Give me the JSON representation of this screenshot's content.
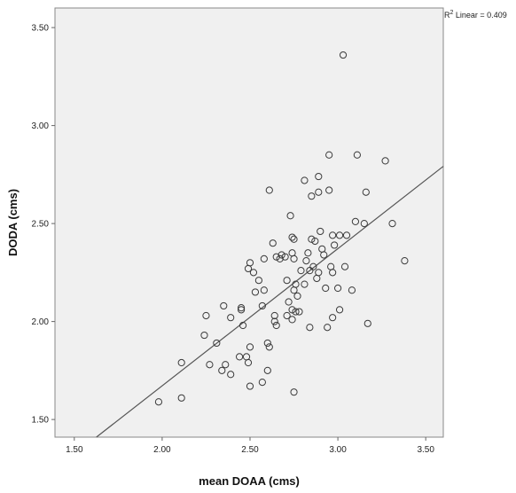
{
  "chart_data": {
    "type": "scatter",
    "title": "",
    "xlabel": "mean DOAA (cms)",
    "ylabel": "DODA (cms)",
    "xlim": [
      1.39,
      3.6
    ],
    "ylim": [
      1.41,
      3.6
    ],
    "x_ticks": [
      "1.50",
      "2.00",
      "2.50",
      "3.00",
      "3.50"
    ],
    "y_ticks": [
      "1.50",
      "2.00",
      "2.50",
      "3.00",
      "3.50"
    ],
    "grid": false,
    "background": "#f0f0f0",
    "marker_color": "#3a3a3a",
    "fit_line_color": "#555555",
    "fit_line": {
      "label_prefix": "R",
      "label_sup": "2",
      "label_suffix": " Linear = 0.409",
      "intercept": 0.272,
      "slope": 0.7
    },
    "points": [
      [
        1.98,
        1.59
      ],
      [
        2.11,
        1.61
      ],
      [
        2.11,
        1.79
      ],
      [
        2.24,
        1.93
      ],
      [
        2.25,
        2.03
      ],
      [
        2.27,
        1.78
      ],
      [
        2.31,
        1.89
      ],
      [
        2.34,
        1.75
      ],
      [
        2.35,
        2.08
      ],
      [
        2.36,
        1.78
      ],
      [
        2.39,
        1.73
      ],
      [
        2.39,
        2.02
      ],
      [
        2.44,
        1.82
      ],
      [
        2.45,
        2.06
      ],
      [
        2.45,
        2.07
      ],
      [
        2.46,
        1.98
      ],
      [
        2.48,
        1.82
      ],
      [
        2.49,
        1.79
      ],
      [
        2.5,
        1.67
      ],
      [
        2.5,
        1.87
      ],
      [
        2.5,
        2.3
      ],
      [
        2.49,
        2.27
      ],
      [
        2.52,
        2.25
      ],
      [
        2.53,
        2.15
      ],
      [
        2.55,
        2.21
      ],
      [
        2.57,
        2.08
      ],
      [
        2.57,
        1.69
      ],
      [
        2.58,
        2.16
      ],
      [
        2.58,
        2.32
      ],
      [
        2.6,
        1.75
      ],
      [
        2.6,
        1.89
      ],
      [
        2.61,
        1.87
      ],
      [
        2.61,
        2.67
      ],
      [
        2.63,
        2.4
      ],
      [
        2.64,
        2.0
      ],
      [
        2.64,
        2.03
      ],
      [
        2.65,
        1.98
      ],
      [
        2.65,
        2.33
      ],
      [
        2.67,
        2.32
      ],
      [
        2.68,
        2.34
      ],
      [
        2.7,
        2.33
      ],
      [
        2.71,
        2.03
      ],
      [
        2.71,
        2.21
      ],
      [
        2.72,
        2.1
      ],
      [
        2.73,
        2.54
      ],
      [
        2.74,
        2.43
      ],
      [
        2.74,
        2.35
      ],
      [
        2.74,
        2.01
      ],
      [
        2.74,
        2.06
      ],
      [
        2.75,
        1.64
      ],
      [
        2.75,
        2.42
      ],
      [
        2.75,
        2.32
      ],
      [
        2.75,
        2.16
      ],
      [
        2.76,
        2.05
      ],
      [
        2.76,
        2.19
      ],
      [
        2.77,
        2.13
      ],
      [
        2.78,
        2.05
      ],
      [
        2.79,
        2.26
      ],
      [
        2.81,
        2.19
      ],
      [
        2.81,
        2.72
      ],
      [
        2.82,
        2.31
      ],
      [
        2.83,
        2.35
      ],
      [
        2.84,
        1.97
      ],
      [
        2.84,
        2.26
      ],
      [
        2.85,
        2.42
      ],
      [
        2.85,
        2.64
      ],
      [
        2.86,
        2.28
      ],
      [
        2.87,
        2.41
      ],
      [
        2.88,
        2.22
      ],
      [
        2.89,
        2.25
      ],
      [
        2.89,
        2.66
      ],
      [
        2.89,
        2.74
      ],
      [
        2.9,
        2.46
      ],
      [
        2.91,
        2.37
      ],
      [
        2.92,
        2.34
      ],
      [
        2.93,
        2.17
      ],
      [
        2.94,
        1.97
      ],
      [
        2.95,
        2.67
      ],
      [
        2.95,
        2.85
      ],
      [
        2.96,
        2.28
      ],
      [
        2.97,
        2.02
      ],
      [
        2.97,
        2.25
      ],
      [
        2.97,
        2.44
      ],
      [
        2.98,
        2.39
      ],
      [
        3.0,
        2.17
      ],
      [
        3.01,
        2.06
      ],
      [
        3.01,
        2.44
      ],
      [
        3.03,
        3.36
      ],
      [
        3.04,
        2.28
      ],
      [
        3.05,
        2.44
      ],
      [
        3.08,
        2.16
      ],
      [
        3.1,
        2.51
      ],
      [
        3.11,
        2.85
      ],
      [
        3.15,
        2.5
      ],
      [
        3.16,
        2.66
      ],
      [
        3.17,
        1.99
      ],
      [
        3.27,
        2.82
      ],
      [
        3.31,
        2.5
      ],
      [
        3.38,
        2.31
      ]
    ]
  }
}
